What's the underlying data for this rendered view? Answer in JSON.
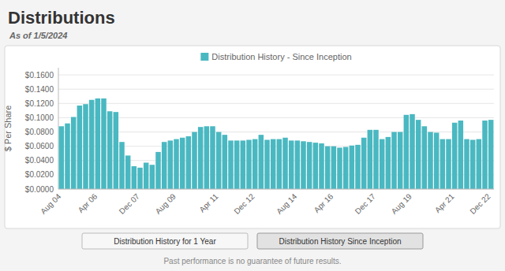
{
  "chart_data": {
    "type": "bar",
    "title": "Distributions",
    "subtitle": "As of 1/5/2024",
    "ylabel": "$ Per Share",
    "annotations": [
      "Distribution History for 1 Year",
      "Distribution History Since Inception",
      "Past performance is no guarantee of future results."
    ],
    "categories": [
      "Aug 04",
      null,
      null,
      null,
      null,
      null,
      "Apr 06",
      null,
      null,
      null,
      null,
      null,
      null,
      "Dec 07",
      null,
      null,
      null,
      null,
      null,
      "Aug 09",
      null,
      null,
      null,
      null,
      null,
      null,
      "Apr 11",
      null,
      null,
      null,
      null,
      null,
      "Dec 12",
      null,
      null,
      null,
      null,
      null,
      null,
      "Aug 14",
      null,
      null,
      null,
      null,
      null,
      "Apr 16",
      null,
      null,
      null,
      null,
      null,
      null,
      "Dec 17",
      null,
      null,
      null,
      null,
      null,
      "Aug 19",
      null,
      null,
      null,
      null,
      null,
      null,
      "Apr 21",
      null,
      null,
      null,
      null,
      null,
      "Dec 22"
    ],
    "series": [
      {
        "name": "Distribution History - Since Inception",
        "color": "#4ab8c1",
        "values": [
          0.088,
          0.092,
          0.101,
          0.117,
          0.119,
          0.125,
          0.127,
          0.127,
          0.109,
          0.108,
          0.066,
          0.047,
          0.032,
          0.03,
          0.037,
          0.034,
          0.052,
          0.066,
          0.068,
          0.07,
          0.072,
          0.074,
          0.08,
          0.087,
          0.088,
          0.088,
          0.08,
          0.076,
          0.068,
          0.068,
          0.068,
          0.069,
          0.07,
          0.076,
          0.069,
          0.07,
          0.07,
          0.072,
          0.068,
          0.068,
          0.067,
          0.066,
          0.065,
          0.064,
          0.06,
          0.06,
          0.058,
          0.059,
          0.061,
          0.062,
          0.072,
          0.083,
          0.083,
          0.07,
          0.073,
          0.08,
          0.08,
          0.104,
          0.105,
          0.097,
          0.088,
          0.08,
          0.079,
          0.07,
          0.07,
          0.093,
          0.096,
          0.07,
          0.069,
          0.07,
          0.096,
          0.097
        ]
      }
    ],
    "ylim": [
      0,
      0.17
    ],
    "yticks": [
      {
        "value": 0.0,
        "label": "$0.0000"
      },
      {
        "value": 0.02,
        "label": "$0.0200"
      },
      {
        "value": 0.04,
        "label": "$0.0400"
      },
      {
        "value": 0.06,
        "label": "$0.0600"
      },
      {
        "value": 0.08,
        "label": "$0.0800"
      },
      {
        "value": 0.1,
        "label": "$0.1000"
      },
      {
        "value": 0.12,
        "label": "$0.1200"
      },
      {
        "value": 0.14,
        "label": "$0.1400"
      },
      {
        "value": 0.16,
        "label": "$0.1600"
      }
    ],
    "grid": true,
    "legend": "top"
  }
}
